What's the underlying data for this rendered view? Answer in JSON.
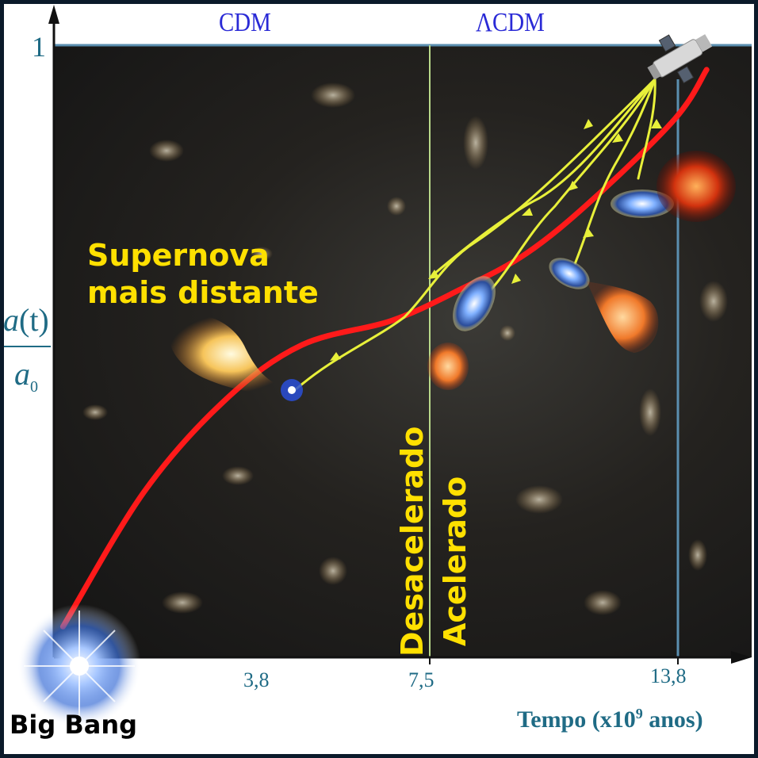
{
  "models": {
    "left": "CDM",
    "right": "ΛCDM"
  },
  "y_axis": {
    "top_value": "1",
    "numerator": "a(t)",
    "numerator_fn": "a",
    "numerator_arg": "(t)",
    "denominator": "a",
    "denominator_sub": "0"
  },
  "x_axis": {
    "ticks": [
      "3,8",
      "7,5",
      "13,8"
    ],
    "label_prefix": "Tempo (x10",
    "label_exp": "9",
    "label_suffix": "anos)"
  },
  "annotations": {
    "supernova_line1": "Supernova",
    "supernova_line2": "mais distante",
    "phase_before": "Desacelerado",
    "phase_after": "Acelerado",
    "origin": "Big Bang"
  },
  "colors": {
    "curve": "#ff1a1a",
    "light_paths": "#e8f03a",
    "text_highlight": "#ffe000",
    "axis_text": "#1f6b85",
    "model_text": "#2a2ad6",
    "guide_lines": "#b9d98a",
    "today_line": "#5b8fb0"
  },
  "icons": {
    "origin": "big-bang-burst-icon",
    "telescope": "hubble-telescope-icon",
    "supernova": "supernova-explosion-icon"
  },
  "chart_data": {
    "type": "line",
    "series": [
      {
        "x": [
          0.2,
          2,
          3.8,
          5.5,
          7.5,
          9,
          10.5,
          12,
          13.8,
          14.5
        ],
        "y": [
          0.05,
          0.27,
          0.42,
          0.51,
          0.55,
          0.6,
          0.66,
          0.75,
          0.88,
          0.96
        ]
      }
    ],
    "vlines": [
      7.5,
      13.8
    ],
    "xticks": [
      "3,8",
      "7,5",
      "13,8"
    ],
    "xlim": [
      0,
      15.5
    ],
    "ylim": [
      0,
      1
    ]
  }
}
